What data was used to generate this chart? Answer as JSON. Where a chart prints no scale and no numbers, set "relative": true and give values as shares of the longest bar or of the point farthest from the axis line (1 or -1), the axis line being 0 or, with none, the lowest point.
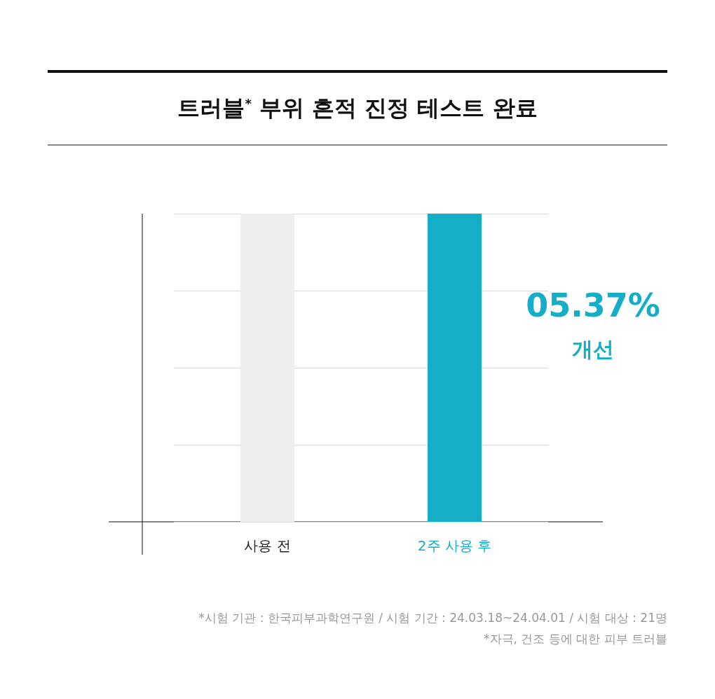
{
  "chart_data": {
    "type": "bar",
    "title": "트러블$^{*}$ 부위 흔적 진정 테스트 완료",
    "categories": [
      "사용 전",
      "2주 사용 후"
    ],
    "values": [
      1,
      1
    ],
    "relative": true,
    "colors": [
      "#eeeeee",
      "#14afc6"
    ],
    "grid": true,
    "annotations": [
      "05.37%",
      "개선",
      "*시험 기관 : 한국피부과학연구원 / 시험 기간 : 24.03.18~24.04.01 / 시험 대상 : 21명",
      "*자극, 건조 등에 대한 피부 트러블"
    ]
  }
}
